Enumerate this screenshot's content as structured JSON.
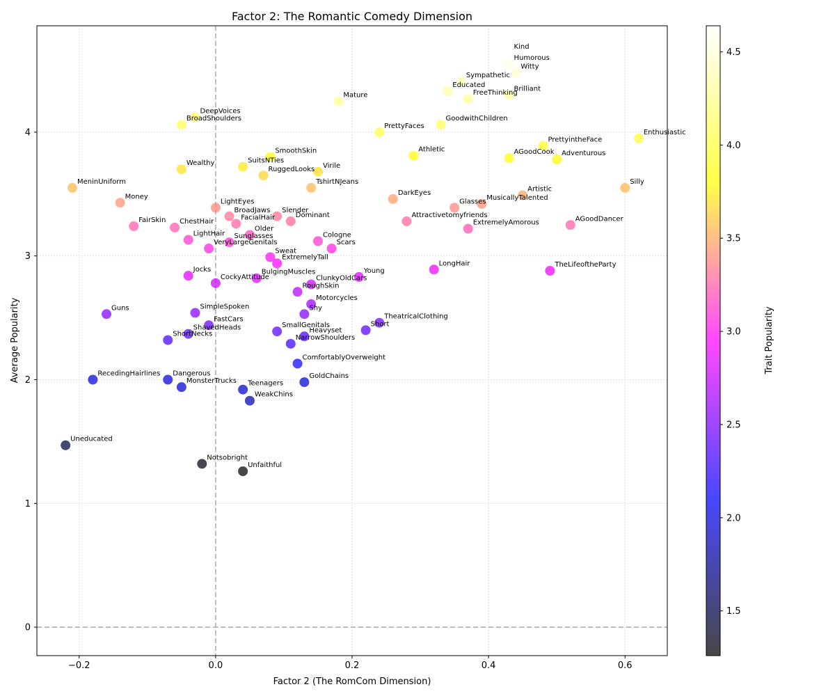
{
  "chart_data": {
    "type": "scatter",
    "title": "Factor 2: The Romantic Comedy Dimension",
    "xlabel": "Factor 2 (The RomCom Dimension)",
    "ylabel": "Average Popularity",
    "xlim": [
      -0.262,
      0.662
    ],
    "ylim": [
      -0.23,
      4.86
    ],
    "xticks": [
      -0.2,
      0.0,
      0.2,
      0.4,
      0.6
    ],
    "xtick_labels": [
      "−0.2",
      "0.0",
      "0.2",
      "0.4",
      "0.6"
    ],
    "yticks": [
      0,
      1,
      2,
      3,
      4
    ],
    "ytick_labels": [
      "0",
      "1",
      "2",
      "3",
      "4"
    ],
    "grid": true,
    "reference_lines": {
      "x": 0,
      "y": 0
    },
    "colorbar": {
      "label": "Trait Popularity",
      "range": [
        1.26,
        4.64
      ],
      "ticks": [
        1.5,
        2.0,
        2.5,
        3.0,
        3.5,
        4.0,
        4.5
      ],
      "tick_labels": [
        "1.5",
        "2.0",
        "2.5",
        "3.0",
        "3.5",
        "4.0",
        "4.5"
      ],
      "colormap": [
        "#000000",
        "#0000ff",
        "#ff00ff",
        "#ffff00",
        "#ffffff"
      ]
    },
    "points": [
      {
        "label": "Kind",
        "x": 0.43,
        "y": 4.64
      },
      {
        "label": "Humorous",
        "x": 0.43,
        "y": 4.55
      },
      {
        "label": "Witty",
        "x": 0.44,
        "y": 4.48
      },
      {
        "label": "Sympathetic",
        "x": 0.36,
        "y": 4.41
      },
      {
        "label": "Educated",
        "x": 0.34,
        "y": 4.33
      },
      {
        "label": "Brilliant",
        "x": 0.43,
        "y": 4.3
      },
      {
        "label": "FreeThinking",
        "x": 0.37,
        "y": 4.27
      },
      {
        "label": "Mature",
        "x": 0.18,
        "y": 4.25
      },
      {
        "label": "DeepVoices",
        "x": -0.03,
        "y": 4.12
      },
      {
        "label": "BroadShoulders",
        "x": -0.05,
        "y": 4.06
      },
      {
        "label": "GoodwithChildren",
        "x": 0.33,
        "y": 4.06
      },
      {
        "label": "PrettyFaces",
        "x": 0.24,
        "y": 4.0
      },
      {
        "label": "Enthusiastic",
        "x": 0.62,
        "y": 3.95
      },
      {
        "label": "PrettyintheFace",
        "x": 0.48,
        "y": 3.89
      },
      {
        "label": "SmoothSkin",
        "x": 0.08,
        "y": 3.8
      },
      {
        "label": "Athletic",
        "x": 0.29,
        "y": 3.81
      },
      {
        "label": "AGoodCook",
        "x": 0.43,
        "y": 3.79
      },
      {
        "label": "Adventurous",
        "x": 0.5,
        "y": 3.78
      },
      {
        "label": "SuitsNTies",
        "x": 0.04,
        "y": 3.72
      },
      {
        "label": "Wealthy",
        "x": -0.05,
        "y": 3.7
      },
      {
        "label": "Virile",
        "x": 0.15,
        "y": 3.68
      },
      {
        "label": "RuggedLooks",
        "x": 0.07,
        "y": 3.65
      },
      {
        "label": "MeninUniform",
        "x": -0.21,
        "y": 3.55
      },
      {
        "label": "TshirtNJeans",
        "x": 0.14,
        "y": 3.55
      },
      {
        "label": "Silly",
        "x": 0.6,
        "y": 3.55
      },
      {
        "label": "Artistic",
        "x": 0.45,
        "y": 3.49
      },
      {
        "label": "DarkEyes",
        "x": 0.26,
        "y": 3.46
      },
      {
        "label": "MusicallyTalented",
        "x": 0.39,
        "y": 3.42
      },
      {
        "label": "Money",
        "x": -0.14,
        "y": 3.43
      },
      {
        "label": "Glasses",
        "x": 0.35,
        "y": 3.39
      },
      {
        "label": "LightEyes",
        "x": 0.0,
        "y": 3.39
      },
      {
        "label": "BroadJaws",
        "x": 0.02,
        "y": 3.32
      },
      {
        "label": "Slender",
        "x": 0.09,
        "y": 3.32
      },
      {
        "label": "Attractivetomyfriends",
        "x": 0.28,
        "y": 3.28
      },
      {
        "label": "Dominant",
        "x": 0.11,
        "y": 3.28
      },
      {
        "label": "FacialHair",
        "x": 0.03,
        "y": 3.26
      },
      {
        "label": "AGoodDancer",
        "x": 0.52,
        "y": 3.25
      },
      {
        "label": "FairSkin",
        "x": -0.12,
        "y": 3.24
      },
      {
        "label": "ChestHair",
        "x": -0.06,
        "y": 3.23
      },
      {
        "label": "ExtremelyAmorous",
        "x": 0.37,
        "y": 3.22
      },
      {
        "label": "Older",
        "x": 0.05,
        "y": 3.17
      },
      {
        "label": "LightHair",
        "x": -0.04,
        "y": 3.13
      },
      {
        "label": "Cologne",
        "x": 0.15,
        "y": 3.12
      },
      {
        "label": "Sunglasses",
        "x": 0.02,
        "y": 3.11
      },
      {
        "label": "VeryLargeGenitals",
        "x": -0.01,
        "y": 3.06
      },
      {
        "label": "Scars",
        "x": 0.17,
        "y": 3.06
      },
      {
        "label": "Sweat",
        "x": 0.08,
        "y": 2.99
      },
      {
        "label": "ExtremelyTall",
        "x": 0.09,
        "y": 2.94
      },
      {
        "label": "LongHair",
        "x": 0.32,
        "y": 2.89
      },
      {
        "label": "TheLifeoftheParty",
        "x": 0.49,
        "y": 2.88
      },
      {
        "label": "Jocks",
        "x": -0.04,
        "y": 2.84
      },
      {
        "label": "Young",
        "x": 0.21,
        "y": 2.83
      },
      {
        "label": "BulgingMuscles",
        "x": 0.06,
        "y": 2.82
      },
      {
        "label": "CockyAttitude",
        "x": 0.0,
        "y": 2.78
      },
      {
        "label": "ClunkyOldCars",
        "x": 0.14,
        "y": 2.77
      },
      {
        "label": "RoughSkin",
        "x": 0.12,
        "y": 2.71
      },
      {
        "label": "Motorcycles",
        "x": 0.14,
        "y": 2.61
      },
      {
        "label": "SimpleSpoken",
        "x": -0.03,
        "y": 2.54
      },
      {
        "label": "Guns",
        "x": -0.16,
        "y": 2.53
      },
      {
        "label": "Shy",
        "x": 0.13,
        "y": 2.53
      },
      {
        "label": "TheatricalClothing",
        "x": 0.24,
        "y": 2.46
      },
      {
        "label": "FastCars",
        "x": -0.01,
        "y": 2.44
      },
      {
        "label": "Short",
        "x": 0.22,
        "y": 2.4
      },
      {
        "label": "SmallGenitals",
        "x": 0.09,
        "y": 2.39
      },
      {
        "label": "ShavedHeads",
        "x": -0.04,
        "y": 2.37
      },
      {
        "label": "Heavyset",
        "x": 0.13,
        "y": 2.35
      },
      {
        "label": "ShortNecks",
        "x": -0.07,
        "y": 2.32
      },
      {
        "label": "NarrowShoulders",
        "x": 0.11,
        "y": 2.29
      },
      {
        "label": "ComfortablyOverweight",
        "x": 0.12,
        "y": 2.13
      },
      {
        "label": "RecedingHairlines",
        "x": -0.18,
        "y": 2.0
      },
      {
        "label": "Dangerous",
        "x": -0.07,
        "y": 2.0
      },
      {
        "label": "GoldChains",
        "x": 0.13,
        "y": 1.98
      },
      {
        "label": "MonsterTrucks",
        "x": -0.05,
        "y": 1.94
      },
      {
        "label": "Teenagers",
        "x": 0.04,
        "y": 1.92
      },
      {
        "label": "WeakChins",
        "x": 0.05,
        "y": 1.83
      },
      {
        "label": "Uneducated",
        "x": -0.22,
        "y": 1.47
      },
      {
        "label": "Notsobright",
        "x": -0.02,
        "y": 1.32
      },
      {
        "label": "Unfaithful",
        "x": 0.04,
        "y": 1.26
      }
    ]
  }
}
